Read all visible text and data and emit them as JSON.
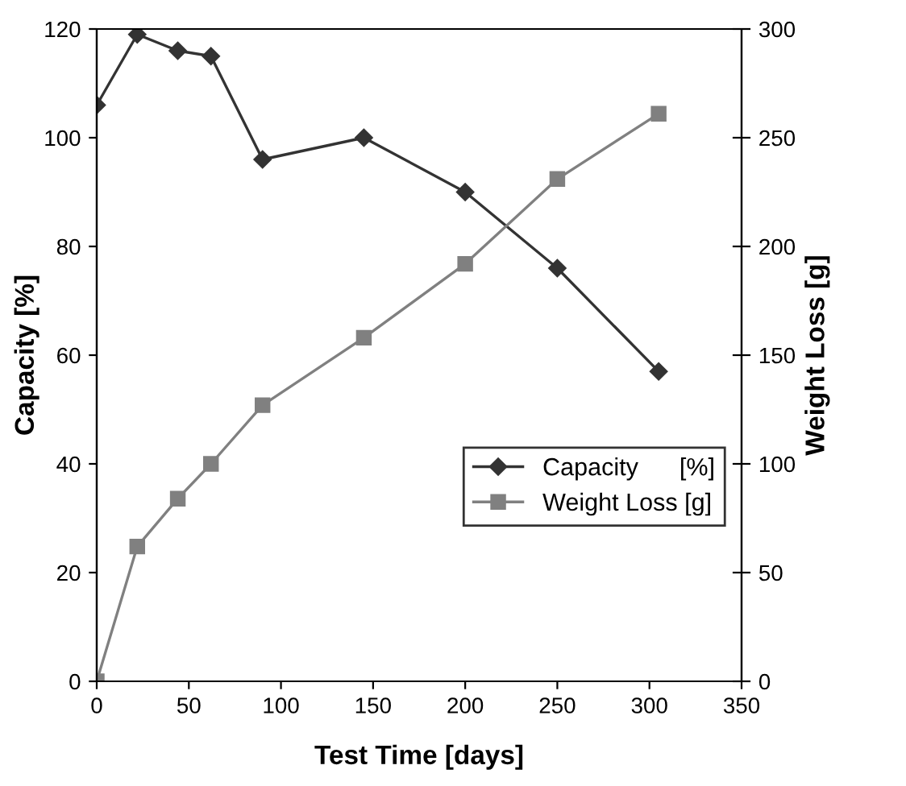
{
  "chart_data": {
    "type": "line",
    "xlabel": "Test Time [days]",
    "ylabel": "Capacity [%]",
    "y2label": "Weight Loss [g]",
    "x": [
      0,
      22,
      44,
      62,
      90,
      145,
      200,
      250,
      305
    ],
    "series": [
      {
        "name": "Capacity      [%]",
        "color": "#333333",
        "marker": "diamond",
        "values": [
          106,
          119,
          116,
          115,
          96,
          100,
          90,
          76,
          57
        ]
      },
      {
        "name": "Weight Loss [g]",
        "color": "#808080",
        "marker": "square",
        "axis": "y2",
        "values": [
          0,
          62,
          84,
          100,
          127,
          158,
          192,
          231,
          261
        ]
      }
    ],
    "xlim": [
      0,
      350
    ],
    "xticks": [
      0,
      50,
      100,
      150,
      200,
      250,
      300,
      350
    ],
    "ylim": [
      0,
      120
    ],
    "yticks": [
      0,
      20,
      40,
      60,
      80,
      100,
      120
    ],
    "y2lim": [
      0,
      300
    ],
    "y2ticks": [
      0,
      50,
      100,
      150,
      200,
      250,
      300
    ],
    "grid": false,
    "legend": "bottom right"
  }
}
